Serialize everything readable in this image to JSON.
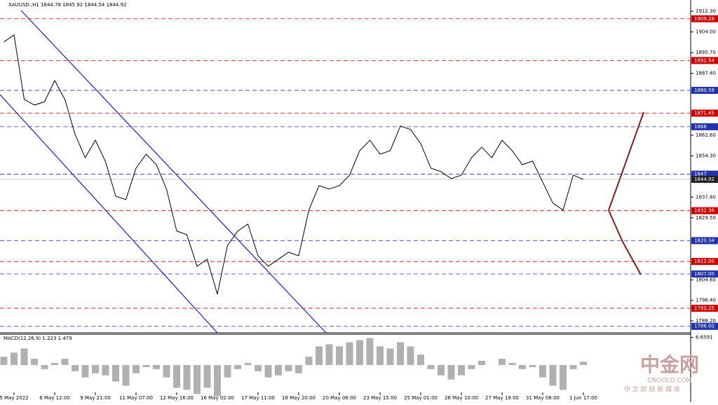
{
  "chart_data": {
    "type": "line",
    "title": "XAUUSD.,H1  1844.78 1845.92 1844.54 1844.92",
    "categories": [
      null,
      "5 May 2022",
      null,
      null,
      null,
      "6 May 12:00",
      null,
      null,
      null,
      "9 May 21:00",
      null,
      null,
      null,
      "11 May 07:00",
      null,
      null,
      null,
      "12 May 16:00",
      null,
      null,
      null,
      "16 May 02:00",
      null,
      null,
      null,
      "17 May 11:00",
      null,
      null,
      null,
      "18 May 20:00",
      null,
      null,
      null,
      "20 May 06:00",
      null,
      null,
      null,
      "23 May 15:00",
      null,
      null,
      null,
      "25 May 01:00",
      null,
      null,
      null,
      "26 May 10:00",
      null,
      null,
      null,
      "27 May 19:00",
      null,
      null,
      null,
      "31 May 08:00",
      null,
      null,
      null,
      "1 Jun 17:00"
    ],
    "series": [
      {
        "name": "XAUUSD.",
        "color": "#000000",
        "values": [
          1900,
          1902.8,
          1877,
          1874.7,
          1876,
          1884.5,
          1877,
          1863,
          1853.6,
          1860.6,
          1852,
          1838.2,
          1836.8,
          1849.4,
          1855,
          1850.8,
          1841,
          1824.2,
          1822.7,
          1810.1,
          1812.9,
          1798.9,
          1818.5,
          1824.2,
          1827,
          1814.3,
          1810.1,
          1812.9,
          1815.7,
          1814.3,
          1832.6,
          1842.4,
          1841,
          1842.4,
          1846.6,
          1856.4,
          1860.6,
          1855,
          1856.4,
          1866.3,
          1864.9,
          1859.2,
          1849.4,
          1848,
          1845.2,
          1846.6,
          1853.6,
          1857.8,
          1853.6,
          1860.6,
          1856.4,
          1850.8,
          1852.2,
          1843.8,
          1835.4,
          1832.6,
          1846.6,
          1844.92
        ]
      }
    ],
    "ylim": [
      1783.4,
      1916.8
    ],
    "yticks": [
      {
        "value": 1912.3,
        "label": "1912.30"
      },
      {
        "value": 1904,
        "label": "1904.00"
      },
      {
        "value": 1895.7,
        "label": "1895.70"
      },
      {
        "value": 1887.4,
        "label": "1887.40"
      },
      {
        "value": 1862.6,
        "label": "1862.60"
      },
      {
        "value": 1854.3,
        "label": "1854.30"
      },
      {
        "value": 1837.8,
        "label": "1837.80"
      },
      {
        "value": 1829.5,
        "label": "1829.50"
      },
      {
        "value": 1804.6,
        "label": "1804.60"
      },
      {
        "value": 1796.4,
        "label": "1796.40"
      },
      {
        "value": 1788.2,
        "label": "1788.20"
      }
    ],
    "levels": [
      {
        "value": 1909.28,
        "color": "#cc0000"
      },
      {
        "value": 1892.54,
        "color": "#cc0000"
      },
      {
        "value": 1880.59,
        "color": "#2233aa"
      },
      {
        "value": 1871.45,
        "color": "#cc0000"
      },
      {
        "value": 1866,
        "color": "#2233aa"
      },
      {
        "value": 1847,
        "color": "#2233aa"
      },
      {
        "value": 1832.36,
        "color": "#cc0000"
      },
      {
        "value": 1820.34,
        "color": "#2233aa"
      },
      {
        "value": {
          "value": 1812,
          "label": "1812.00"
        },
        "color": "#cc0000"
      },
      {
        "value": {
          "value": 1807,
          "label": "1807.00"
        },
        "color": "#2233aa"
      },
      {
        "value": 1793.25,
        "color": "#cc0000"
      },
      {
        "value": {
          "value": 1786,
          "label": "1786.00"
        },
        "color": "#2233aa"
      }
    ],
    "current_price": 1844.92,
    "macd": {
      "label": "MACD(12,26,9) 1.223 1.479",
      "ylim": [
        -8.98,
        7.43
      ],
      "yticks": [
        6.6591
      ],
      "values": [
        2,
        3,
        4,
        1.5,
        -1,
        0.5,
        1.5,
        -1.5,
        -3,
        -2,
        -2.5,
        -4,
        -5,
        -2,
        -0.5,
        -1,
        -3,
        -5.5,
        -6,
        -7,
        -5.5,
        -7.5,
        -3,
        -1,
        0.5,
        -1.5,
        -3,
        -2.5,
        -1.5,
        -2,
        2,
        4.5,
        5,
        4.5,
        5.5,
        6,
        6.5,
        4.5,
        4,
        5.5,
        4.5,
        2.5,
        -1,
        -2.5,
        -3.5,
        -2.5,
        -1,
        1,
        0,
        1.5,
        0.5,
        -1,
        -0.5,
        -3,
        -5,
        -6,
        -1,
        0.8
      ]
    },
    "watermark": {
      "name": "中金网",
      "url": "CNGOLD.COM",
      "tagline": "中 文 财 经 新 媒 体"
    }
  }
}
